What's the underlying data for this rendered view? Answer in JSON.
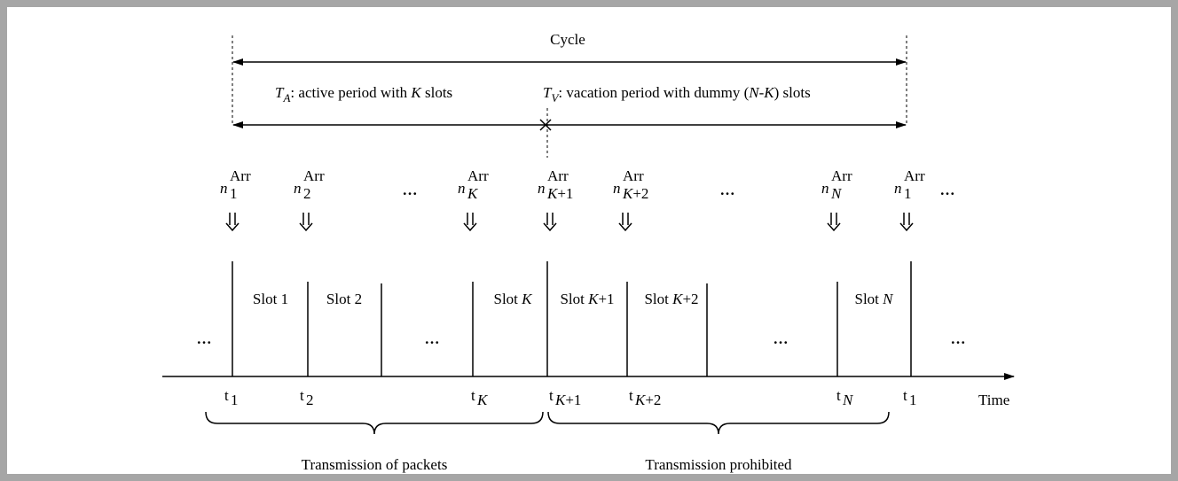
{
  "cycle": "Cycle",
  "active_label": [
    "T",
    "A",
    ": active period with ",
    "K",
    " slots"
  ],
  "vacation_label": [
    "T",
    "V",
    ": vacation period with dummy (",
    "N",
    "-",
    "K",
    ") slots"
  ],
  "arrivals": {
    "symbol": "n",
    "sup": "Arr",
    "subs": [
      "1",
      "2",
      "K",
      "K+1",
      "K+2",
      "N",
      "1"
    ]
  },
  "ellipsis": "…",
  "slots": [
    "Slot 1",
    "Slot 2",
    "Slot K",
    "Slot K+1",
    "Slot K+2",
    "Slot N"
  ],
  "times": {
    "symbol": "t",
    "subs": [
      "1",
      "2",
      "K",
      "K+1",
      "K+2",
      "N",
      "1"
    ]
  },
  "axis_label": "Time",
  "phases": [
    "Transmission of packets",
    "Transmission prohibited"
  ]
}
